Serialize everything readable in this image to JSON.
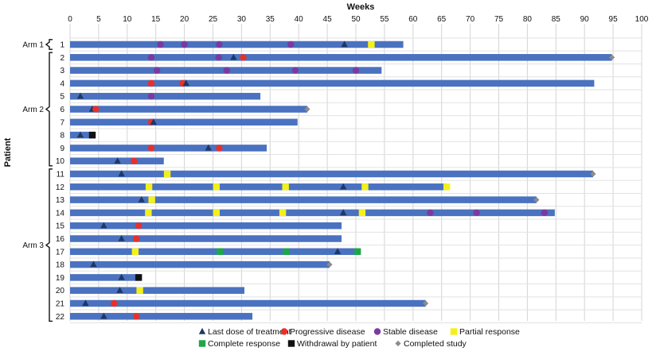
{
  "chart_data": {
    "type": "swimmer",
    "title": "",
    "xlabel": "Weeks",
    "ylabel": "Patient",
    "xlim": [
      0,
      100
    ],
    "x_ticks": [
      0,
      5,
      10,
      15,
      20,
      25,
      30,
      35,
      40,
      45,
      50,
      55,
      60,
      65,
      70,
      75,
      80,
      85,
      90,
      95,
      100
    ],
    "grid": true,
    "bar_color": "#4a72c0",
    "legend": {
      "placement": "bottom",
      "items": [
        {
          "key": "last_dose",
          "label": "Last dose of treatment",
          "shape": "triangle",
          "color": "#1f3864"
        },
        {
          "key": "progressive",
          "label": "Progressive disease",
          "shape": "circle",
          "color": "#e8302b"
        },
        {
          "key": "stable",
          "label": "Stable disease",
          "shape": "circle",
          "color": "#7b3aa0"
        },
        {
          "key": "partial",
          "label": "Partial response",
          "shape": "square",
          "color": "#f4f01c"
        },
        {
          "key": "complete",
          "label": "Complete response",
          "shape": "square",
          "color": "#1ea64b"
        },
        {
          "key": "withdrawal",
          "label": "Withdrawal by patient",
          "shape": "square",
          "color": "#111111"
        },
        {
          "key": "completed",
          "label": "Completed study",
          "shape": "diamond",
          "color": "#8c8c8c"
        }
      ]
    },
    "arms": [
      {
        "label": "Arm 1",
        "patients": [
          "1"
        ]
      },
      {
        "label": "Arm 2",
        "patients": [
          "2",
          "3",
          "4",
          "5",
          "6",
          "7",
          "8",
          "9",
          "10"
        ]
      },
      {
        "label": "Arm 3",
        "patients": [
          "11",
          "12",
          "13",
          "14",
          "15",
          "16",
          "17",
          "18",
          "19",
          "20",
          "21",
          "22"
        ]
      }
    ],
    "patients": [
      {
        "label": "1",
        "duration": 58.3,
        "events": [
          {
            "type": "stable",
            "week": 15.8
          },
          {
            "type": "stable",
            "week": 20.0
          },
          {
            "type": "stable",
            "week": 26.1
          },
          {
            "type": "stable",
            "week": 38.6
          },
          {
            "type": "last_dose",
            "week": 48.0
          },
          {
            "type": "partial",
            "week": 52.7
          }
        ]
      },
      {
        "label": "2",
        "duration": 94.8,
        "events": [
          {
            "type": "stable",
            "week": 14.2
          },
          {
            "type": "stable",
            "week": 26.0
          },
          {
            "type": "last_dose",
            "week": 28.6
          },
          {
            "type": "progressive",
            "week": 30.3
          },
          {
            "type": "completed",
            "week": 94.8
          }
        ]
      },
      {
        "label": "3",
        "duration": 54.5,
        "events": [
          {
            "type": "stable",
            "week": 15.2
          },
          {
            "type": "stable",
            "week": 27.4
          },
          {
            "type": "stable",
            "week": 39.4
          },
          {
            "type": "stable",
            "week": 50.0
          }
        ]
      },
      {
        "label": "4",
        "duration": 91.7,
        "events": [
          {
            "type": "progressive",
            "week": 14.2
          },
          {
            "type": "progressive",
            "week": 19.7
          },
          {
            "type": "last_dose",
            "week": 20.3
          }
        ]
      },
      {
        "label": "5",
        "duration": 33.3,
        "events": [
          {
            "type": "last_dose",
            "week": 1.8
          },
          {
            "type": "stable",
            "week": 14.2
          }
        ]
      },
      {
        "label": "6",
        "duration": 41.5,
        "events": [
          {
            "type": "last_dose",
            "week": 3.9
          },
          {
            "type": "progressive",
            "week": 4.5
          },
          {
            "type": "completed",
            "week": 41.5
          }
        ]
      },
      {
        "label": "7",
        "duration": 39.8,
        "events": [
          {
            "type": "progressive",
            "week": 14.2
          },
          {
            "type": "last_dose",
            "week": 14.6
          }
        ]
      },
      {
        "label": "8",
        "duration": 4.4,
        "events": [
          {
            "type": "last_dose",
            "week": 1.8
          },
          {
            "type": "withdrawal",
            "week": 3.9
          }
        ]
      },
      {
        "label": "9",
        "duration": 34.4,
        "events": [
          {
            "type": "progressive",
            "week": 14.2
          },
          {
            "type": "last_dose",
            "week": 24.2
          },
          {
            "type": "progressive",
            "week": 26.1
          }
        ]
      },
      {
        "label": "10",
        "duration": 16.4,
        "events": [
          {
            "type": "last_dose",
            "week": 8.3
          },
          {
            "type": "progressive",
            "week": 11.2
          }
        ]
      },
      {
        "label": "11",
        "duration": 91.5,
        "events": [
          {
            "type": "last_dose",
            "week": 9.0
          },
          {
            "type": "partial",
            "week": 17.0
          },
          {
            "type": "completed",
            "week": 91.5
          }
        ]
      },
      {
        "label": "12",
        "duration": 65.9,
        "events": [
          {
            "type": "partial",
            "week": 13.8
          },
          {
            "type": "partial",
            "week": 25.6
          },
          {
            "type": "partial",
            "week": 37.7
          },
          {
            "type": "last_dose",
            "week": 47.8
          },
          {
            "type": "partial",
            "week": 51.6
          },
          {
            "type": "partial",
            "week": 65.9
          }
        ]
      },
      {
        "label": "13",
        "duration": 81.6,
        "events": [
          {
            "type": "last_dose",
            "week": 12.5
          },
          {
            "type": "partial",
            "week": 14.3
          },
          {
            "type": "completed",
            "week": 81.6
          }
        ]
      },
      {
        "label": "14",
        "duration": 84.8,
        "events": [
          {
            "type": "partial",
            "week": 13.7
          },
          {
            "type": "partial",
            "week": 25.6
          },
          {
            "type": "partial",
            "week": 37.2
          },
          {
            "type": "last_dose",
            "week": 47.8
          },
          {
            "type": "partial",
            "week": 51.1
          },
          {
            "type": "stable",
            "week": 63.0
          },
          {
            "type": "stable",
            "week": 71.1
          },
          {
            "type": "stable",
            "week": 83.0
          }
        ]
      },
      {
        "label": "15",
        "duration": 47.5,
        "events": [
          {
            "type": "last_dose",
            "week": 5.9
          },
          {
            "type": "progressive",
            "week": 12.0
          }
        ]
      },
      {
        "label": "16",
        "duration": 47.5,
        "events": [
          {
            "type": "last_dose",
            "week": 9.0
          },
          {
            "type": "progressive",
            "week": 11.6
          }
        ]
      },
      {
        "label": "17",
        "duration": 50.4,
        "events": [
          {
            "type": "partial",
            "week": 11.4
          },
          {
            "type": "complete",
            "week": 26.2
          },
          {
            "type": "complete",
            "week": 37.8
          },
          {
            "type": "last_dose",
            "week": 46.8
          },
          {
            "type": "complete",
            "week": 50.3
          }
        ]
      },
      {
        "label": "18",
        "duration": 45.4,
        "events": [
          {
            "type": "last_dose",
            "week": 4.1
          },
          {
            "type": "completed",
            "week": 45.4
          }
        ]
      },
      {
        "label": "19",
        "duration": 12.4,
        "events": [
          {
            "type": "last_dose",
            "week": 9.0
          },
          {
            "type": "withdrawal",
            "week": 12.0
          }
        ]
      },
      {
        "label": "20",
        "duration": 30.5,
        "events": [
          {
            "type": "last_dose",
            "week": 8.7
          },
          {
            "type": "partial",
            "week": 12.2
          }
        ]
      },
      {
        "label": "21",
        "duration": 62.2,
        "events": [
          {
            "type": "last_dose",
            "week": 2.7
          },
          {
            "type": "progressive",
            "week": 7.7
          },
          {
            "type": "completed",
            "week": 62.2
          }
        ]
      },
      {
        "label": "22",
        "duration": 31.9,
        "events": [
          {
            "type": "last_dose",
            "week": 5.9
          },
          {
            "type": "progressive",
            "week": 11.6
          }
        ]
      }
    ]
  }
}
